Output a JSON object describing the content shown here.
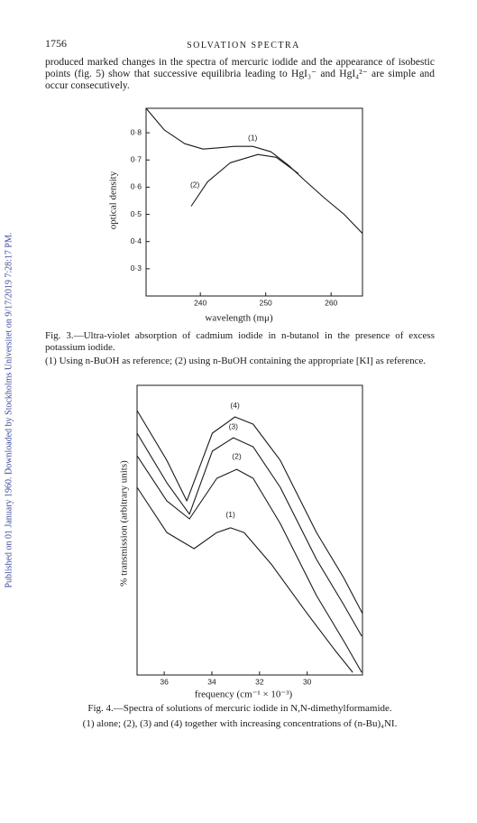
{
  "page_number": "1756",
  "running_title": "SOLVATION SPECTRA",
  "sidebar": "Published on 01 January 1960. Downloaded by Stockholms Universitet on 9/17/2019 7:28:17 PM.",
  "paragraph": "produced marked changes in the spectra of mercuric iodide and the appearance of isobestic points (fig. 5) show that successive equilibria leading to HgI₃⁻ and HgI₄²⁻ are simple and occur consecutively.",
  "chart_data": [
    {
      "type": "line",
      "xlabel": "wavelength (mμ)",
      "ylabel": "optical density",
      "caption": "Fig. 3.—Ultra-violet absorption of cadmium iodide in n-butanol in the presence of excess potassium iodide.",
      "note": "(1) Using n-BuOH as reference; (2) using n-BuOH containing the appropriate [KI] as reference.",
      "xlim": [
        231.7,
        264.8
      ],
      "ylim": [
        0.2,
        0.89
      ],
      "xticks": [
        240,
        250,
        260
      ],
      "yticks": [
        {
          "value": 0.8,
          "label": "0·8"
        },
        {
          "value": 0.7,
          "label": "0·7"
        },
        {
          "value": 0.6,
          "label": "0·6"
        },
        {
          "value": 0.5,
          "label": "0·5"
        },
        {
          "value": 0.4,
          "label": "0·4"
        },
        {
          "value": 0.3,
          "label": "0·3"
        }
      ],
      "series": [
        {
          "name": "(1)",
          "color": "#1a1a1a",
          "x": [
            231.7,
            234.5,
            237.6,
            240.4,
            243.0,
            245.2,
            248.0,
            250.8,
            253.5,
            256.2,
            259.0,
            262.0,
            264.8
          ],
          "values": [
            0.89,
            0.81,
            0.76,
            0.74,
            0.745,
            0.75,
            0.75,
            0.73,
            0.68,
            0.62,
            0.56,
            0.5,
            0.43
          ]
        },
        {
          "name": "(2)",
          "color": "#1a1a1a",
          "x": [
            238.6,
            241.1,
            244.6,
            248.8,
            251.6,
            255.0
          ],
          "values": [
            0.53,
            0.62,
            0.69,
            0.72,
            0.71,
            0.65
          ]
        }
      ]
    },
    {
      "type": "line",
      "xlabel": "frequency (cm⁻¹ × 10⁻³)",
      "ylabel": "% transmission (arbitrary units)",
      "caption": "Fig. 4.—Spectra of solutions of mercuric iodide in N,N-dimethylformamide.",
      "note": "(1) alone; (2), (3) and (4) together with increasing concentrations of (n-Bu)₄NI.",
      "xlim": [
        37.14,
        27.68
      ],
      "ylim": [
        0,
        100
      ],
      "xticks": [
        36,
        34,
        32,
        30
      ],
      "series": [
        {
          "name": "(1)",
          "color": "#1a1a1a",
          "x": [
            37.14,
            35.89,
            34.75,
            33.79,
            33.22,
            32.65,
            31.51,
            30.0,
            28.85,
            28.09
          ],
          "values": [
            64.8,
            49.2,
            43.6,
            49.2,
            50.8,
            49.2,
            38.3,
            21.2,
            8.7,
            0.9
          ]
        },
        {
          "name": "(2)",
          "color": "#1a1a1a",
          "x": [
            37.14,
            35.89,
            34.94,
            33.79,
            32.96,
            32.27,
            31.13,
            29.61,
            28.47,
            27.71
          ],
          "values": [
            75.7,
            60.1,
            53.9,
            67.9,
            71.0,
            67.9,
            52.3,
            27.4,
            11.8,
            0.9
          ]
        },
        {
          "name": "(3)",
          "color": "#1a1a1a",
          "x": [
            37.14,
            35.89,
            34.94,
            33.98,
            33.1,
            32.27,
            31.13,
            29.61,
            28.47,
            27.71
          ],
          "values": [
            83.5,
            66.4,
            55.5,
            77.3,
            81.9,
            78.8,
            64.8,
            39.9,
            24.3,
            13.4
          ]
        },
        {
          "name": "(4)",
          "color": "#1a1a1a",
          "x": [
            37.14,
            35.89,
            35.05,
            33.98,
            33.03,
            32.27,
            31.13,
            29.61,
            28.47,
            27.68
          ],
          "values": [
            91.3,
            74.1,
            60.1,
            83.5,
            89.1,
            86.6,
            74.1,
            49.2,
            33.6,
            21.2
          ]
        }
      ]
    }
  ]
}
